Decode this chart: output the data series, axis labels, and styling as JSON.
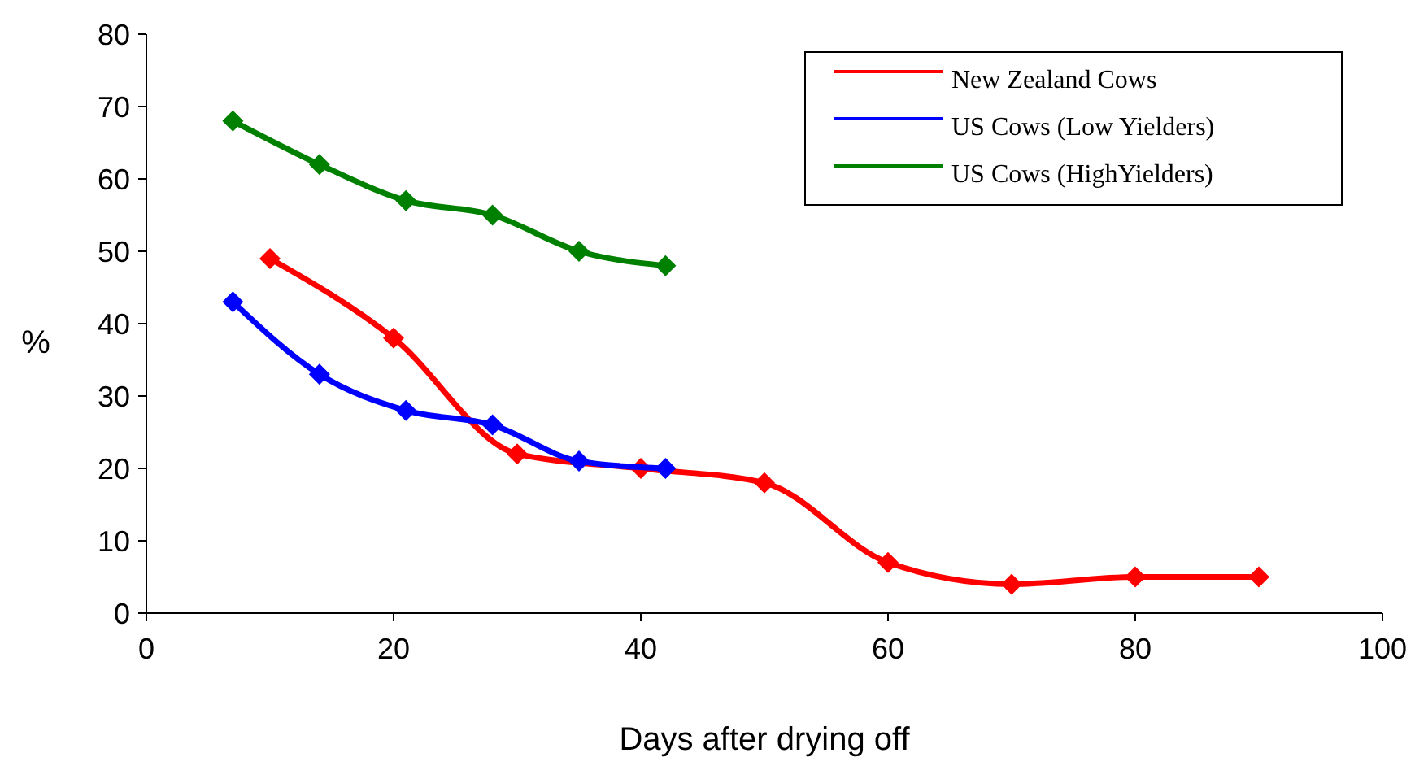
{
  "chart_data": {
    "type": "line",
    "xlabel": "Days after drying off",
    "ylabel": "%",
    "xlim": [
      0,
      100
    ],
    "xticks": [
      0,
      20,
      40,
      60,
      80,
      100
    ],
    "ylim": [
      0,
      80
    ],
    "yticks": [
      0,
      10,
      20,
      30,
      40,
      50,
      60,
      70,
      80
    ],
    "grid": false,
    "legend": "top right",
    "marker": "diamond",
    "line_style": "solid",
    "series": [
      {
        "name": "New Zealand Cows",
        "color": "#ff0000",
        "x": [
          10,
          20,
          30,
          40,
          50,
          60,
          70,
          80,
          90
        ],
        "values": [
          49,
          38,
          22,
          20,
          18,
          7,
          4,
          5,
          5
        ]
      },
      {
        "name": "US Cows (Low Yielders)",
        "color": "#0000ff",
        "x": [
          7,
          14,
          21,
          28,
          35,
          42
        ],
        "values": [
          43,
          33,
          28,
          26,
          21,
          20
        ]
      },
      {
        "name": "US Cows (HighYielders)",
        "color": "#008000",
        "x": [
          7,
          14,
          21,
          28,
          35,
          42
        ],
        "values": [
          68,
          62,
          57,
          55,
          50,
          48
        ]
      }
    ]
  }
}
